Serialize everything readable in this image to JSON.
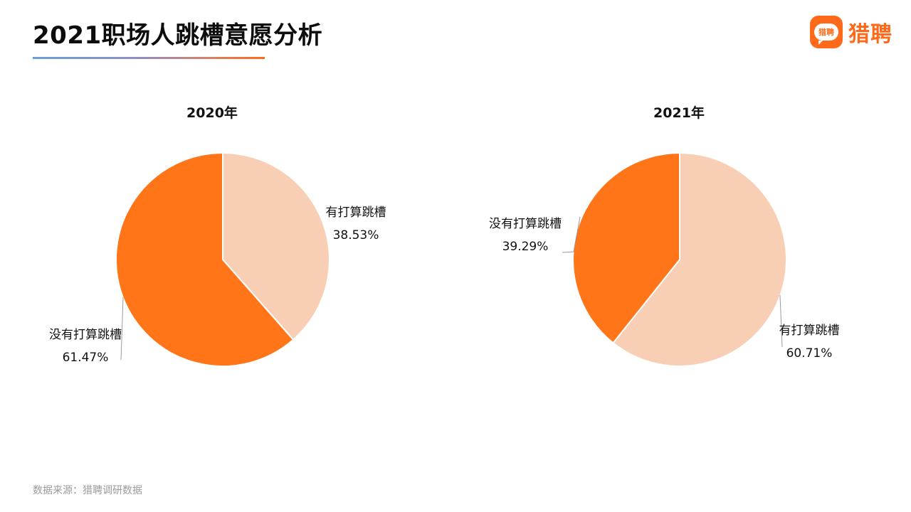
{
  "header": {
    "title": "2021职场人跳槽意愿分析",
    "brand_logo_text": "猎聘",
    "brand_name": "猎聘"
  },
  "colors": {
    "orange": "#FF7518",
    "peach": "#F8CFB5",
    "leader_line": "#9a9a9a"
  },
  "chart_data": [
    {
      "type": "pie",
      "title": "2020年",
      "slices": [
        {
          "label": "有打算跳槽",
          "value": 38.53,
          "display": "38.53%",
          "color": "#F8CFB5"
        },
        {
          "label": "没有打算跳槽",
          "value": 61.47,
          "display": "61.47%",
          "color": "#FF7518"
        }
      ]
    },
    {
      "type": "pie",
      "title": "2021年",
      "slices": [
        {
          "label": "有打算跳槽",
          "value": 60.71,
          "display": "60.71%",
          "color": "#F8CFB5"
        },
        {
          "label": "没有打算跳槽",
          "value": 39.29,
          "display": "39.29%",
          "color": "#FF7518"
        }
      ]
    }
  ],
  "footer": {
    "source": "数据来源：猎聘调研数据"
  }
}
